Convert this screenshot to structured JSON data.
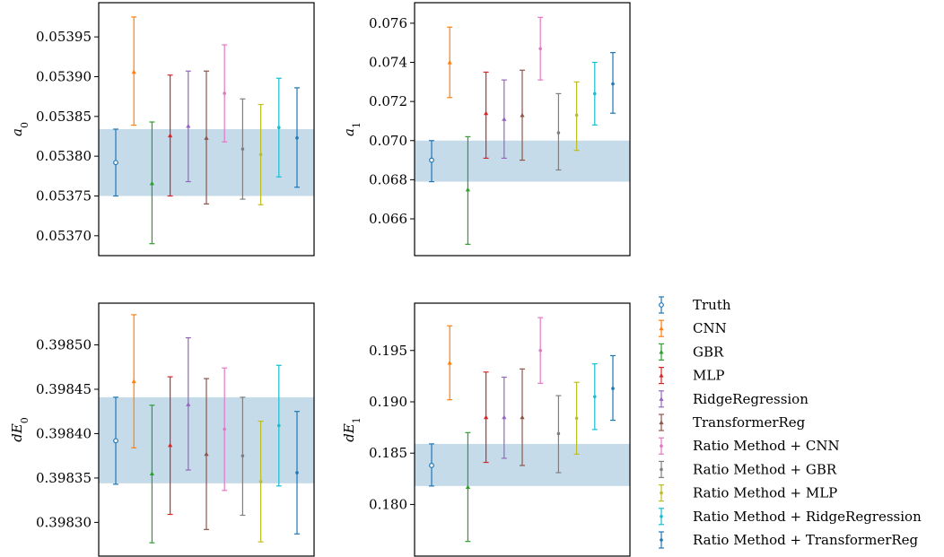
{
  "legend": {
    "entries": [
      {
        "label": "Truth",
        "color": "#1f77b4",
        "marker": "open-circle"
      },
      {
        "label": "CNN",
        "color": "#ff7f0e",
        "marker": "triangle"
      },
      {
        "label": "GBR",
        "color": "#2ca02c",
        "marker": "triangle"
      },
      {
        "label": "MLP",
        "color": "#d62728",
        "marker": "triangle"
      },
      {
        "label": "RidgeRegression",
        "color": "#9467bd",
        "marker": "triangle"
      },
      {
        "label": "TransformerReg",
        "color": "#8c564b",
        "marker": "triangle"
      },
      {
        "label": "Ratio Method + CNN",
        "color": "#e377c2",
        "marker": "dot"
      },
      {
        "label": "Ratio Method + GBR",
        "color": "#7f7f7f",
        "marker": "dot"
      },
      {
        "label": "Ratio Method + MLP",
        "color": "#bcbd22",
        "marker": "dot"
      },
      {
        "label": "Ratio Method + RidgeRegression",
        "color": "#17becf",
        "marker": "dot"
      },
      {
        "label": "Ratio Method + TransformerReg",
        "color": "#1f77b4",
        "marker": "dot"
      }
    ]
  },
  "chart_data": [
    {
      "type": "scatter",
      "title": "",
      "xlabel": "",
      "ylabel": "a_0",
      "ylabel_main": "a",
      "ylabel_sub": "0",
      "ylim": [
        0.053675,
        0.053993
      ],
      "yticks": [
        0.0537,
        0.05375,
        0.0538,
        0.05385,
        0.0539,
        0.05395
      ],
      "ytick_labels": [
        "0.05370",
        "0.05375",
        "0.05380",
        "0.05385",
        "0.05390",
        "0.05395"
      ],
      "band": [
        0.05375,
        0.053834
      ],
      "series": [
        {
          "name": "Truth",
          "value": 0.053792,
          "lower": 0.05375,
          "upper": 0.053834
        },
        {
          "name": "CNN",
          "value": 0.053906,
          "lower": 0.053839,
          "upper": 0.053975
        },
        {
          "name": "GBR",
          "value": 0.053766,
          "lower": 0.05369,
          "upper": 0.053843
        },
        {
          "name": "MLP",
          "value": 0.053826,
          "lower": 0.05375,
          "upper": 0.053902
        },
        {
          "name": "RidgeRegression",
          "value": 0.053838,
          "lower": 0.053768,
          "upper": 0.053907
        },
        {
          "name": "TransformerReg",
          "value": 0.053823,
          "lower": 0.05374,
          "upper": 0.053907
        },
        {
          "name": "Ratio Method + CNN",
          "value": 0.053879,
          "lower": 0.053818,
          "upper": 0.05394
        },
        {
          "name": "Ratio Method + GBR",
          "value": 0.053809,
          "lower": 0.053746,
          "upper": 0.053872
        },
        {
          "name": "Ratio Method + MLP",
          "value": 0.053802,
          "lower": 0.053739,
          "upper": 0.053865
        },
        {
          "name": "Ratio Method + RidgeRegression",
          "value": 0.053836,
          "lower": 0.053774,
          "upper": 0.053898
        },
        {
          "name": "Ratio Method + TransformerReg",
          "value": 0.053823,
          "lower": 0.053761,
          "upper": 0.053886
        }
      ]
    },
    {
      "type": "scatter",
      "title": "",
      "xlabel": "",
      "ylabel": "a_1",
      "ylabel_main": "a",
      "ylabel_sub": "1",
      "ylim": [
        0.06412,
        0.07705
      ],
      "yticks": [
        0.066,
        0.068,
        0.07,
        0.072,
        0.074,
        0.076
      ],
      "ytick_labels": [
        "0.066",
        "0.068",
        "0.070",
        "0.072",
        "0.074",
        "0.076"
      ],
      "band": [
        0.0679,
        0.07
      ],
      "series": [
        {
          "name": "Truth",
          "value": 0.069,
          "lower": 0.0679,
          "upper": 0.07
        },
        {
          "name": "CNN",
          "value": 0.074,
          "lower": 0.0722,
          "upper": 0.0758
        },
        {
          "name": "GBR",
          "value": 0.0675,
          "lower": 0.0647,
          "upper": 0.0702
        },
        {
          "name": "MLP",
          "value": 0.0714,
          "lower": 0.0691,
          "upper": 0.0735
        },
        {
          "name": "RidgeRegression",
          "value": 0.0711,
          "lower": 0.0691,
          "upper": 0.0731
        },
        {
          "name": "TransformerReg",
          "value": 0.0713,
          "lower": 0.069,
          "upper": 0.0736
        },
        {
          "name": "Ratio Method + CNN",
          "value": 0.0747,
          "lower": 0.0731,
          "upper": 0.0763
        },
        {
          "name": "Ratio Method + GBR",
          "value": 0.0704,
          "lower": 0.0685,
          "upper": 0.0724
        },
        {
          "name": "Ratio Method + MLP",
          "value": 0.0713,
          "lower": 0.0695,
          "upper": 0.073
        },
        {
          "name": "Ratio Method + RidgeRegression",
          "value": 0.0724,
          "lower": 0.0708,
          "upper": 0.074
        },
        {
          "name": "Ratio Method + TransformerReg",
          "value": 0.0729,
          "lower": 0.0714,
          "upper": 0.0745
        }
      ]
    },
    {
      "type": "scatter",
      "title": "",
      "xlabel": "",
      "ylabel": "dE_0",
      "ylabel_main": "dE",
      "ylabel_sub": "0",
      "ylim": [
        0.398262,
        0.398547
      ],
      "yticks": [
        0.3983,
        0.39835,
        0.3984,
        0.39845,
        0.3985
      ],
      "ytick_labels": [
        "0.39830",
        "0.39835",
        "0.39840",
        "0.39845",
        "0.39850"
      ],
      "band": [
        0.398344,
        0.398441
      ],
      "series": [
        {
          "name": "Truth",
          "value": 0.398392,
          "lower": 0.398343,
          "upper": 0.398441
        },
        {
          "name": "CNN",
          "value": 0.398459,
          "lower": 0.398384,
          "upper": 0.398534
        },
        {
          "name": "GBR",
          "value": 0.398355,
          "lower": 0.398277,
          "upper": 0.398432
        },
        {
          "name": "MLP",
          "value": 0.398387,
          "lower": 0.398309,
          "upper": 0.398464
        },
        {
          "name": "RidgeRegression",
          "value": 0.398433,
          "lower": 0.398359,
          "upper": 0.398508
        },
        {
          "name": "TransformerReg",
          "value": 0.398377,
          "lower": 0.398292,
          "upper": 0.398462
        },
        {
          "name": "Ratio Method + CNN",
          "value": 0.398405,
          "lower": 0.398336,
          "upper": 0.398474
        },
        {
          "name": "Ratio Method + GBR",
          "value": 0.398375,
          "lower": 0.398308,
          "upper": 0.398441
        },
        {
          "name": "Ratio Method + MLP",
          "value": 0.398346,
          "lower": 0.398278,
          "upper": 0.398414
        },
        {
          "name": "Ratio Method + RidgeRegression",
          "value": 0.398409,
          "lower": 0.398341,
          "upper": 0.398477
        },
        {
          "name": "Ratio Method + TransformerReg",
          "value": 0.398356,
          "lower": 0.398287,
          "upper": 0.398425
        }
      ]
    },
    {
      "type": "scatter",
      "title": "",
      "xlabel": "",
      "ylabel": "dE_1",
      "ylabel_main": "dE",
      "ylabel_sub": "1",
      "ylim": [
        0.17497,
        0.19961
      ],
      "yticks": [
        0.18,
        0.185,
        0.19,
        0.195
      ],
      "ytick_labels": [
        "0.180",
        "0.185",
        "0.190",
        "0.195"
      ],
      "band": [
        0.1818,
        0.1859
      ],
      "series": [
        {
          "name": "Truth",
          "value": 0.1838,
          "lower": 0.1818,
          "upper": 0.1859
        },
        {
          "name": "CNN",
          "value": 0.1938,
          "lower": 0.1902,
          "upper": 0.1974
        },
        {
          "name": "GBR",
          "value": 0.1817,
          "lower": 0.1764,
          "upper": 0.187
        },
        {
          "name": "MLP",
          "value": 0.1885,
          "lower": 0.1841,
          "upper": 0.1929
        },
        {
          "name": "RidgeRegression",
          "value": 0.1885,
          "lower": 0.1845,
          "upper": 0.1924
        },
        {
          "name": "TransformerReg",
          "value": 0.1885,
          "lower": 0.1838,
          "upper": 0.1932
        },
        {
          "name": "Ratio Method + CNN",
          "value": 0.195,
          "lower": 0.1918,
          "upper": 0.1982
        },
        {
          "name": "Ratio Method + GBR",
          "value": 0.1869,
          "lower": 0.1831,
          "upper": 0.1906
        },
        {
          "name": "Ratio Method + MLP",
          "value": 0.1884,
          "lower": 0.1849,
          "upper": 0.1919
        },
        {
          "name": "Ratio Method + RidgeRegression",
          "value": 0.1905,
          "lower": 0.1873,
          "upper": 0.1937
        },
        {
          "name": "Ratio Method + TransformerReg",
          "value": 0.1913,
          "lower": 0.1882,
          "upper": 0.1945
        }
      ]
    }
  ]
}
